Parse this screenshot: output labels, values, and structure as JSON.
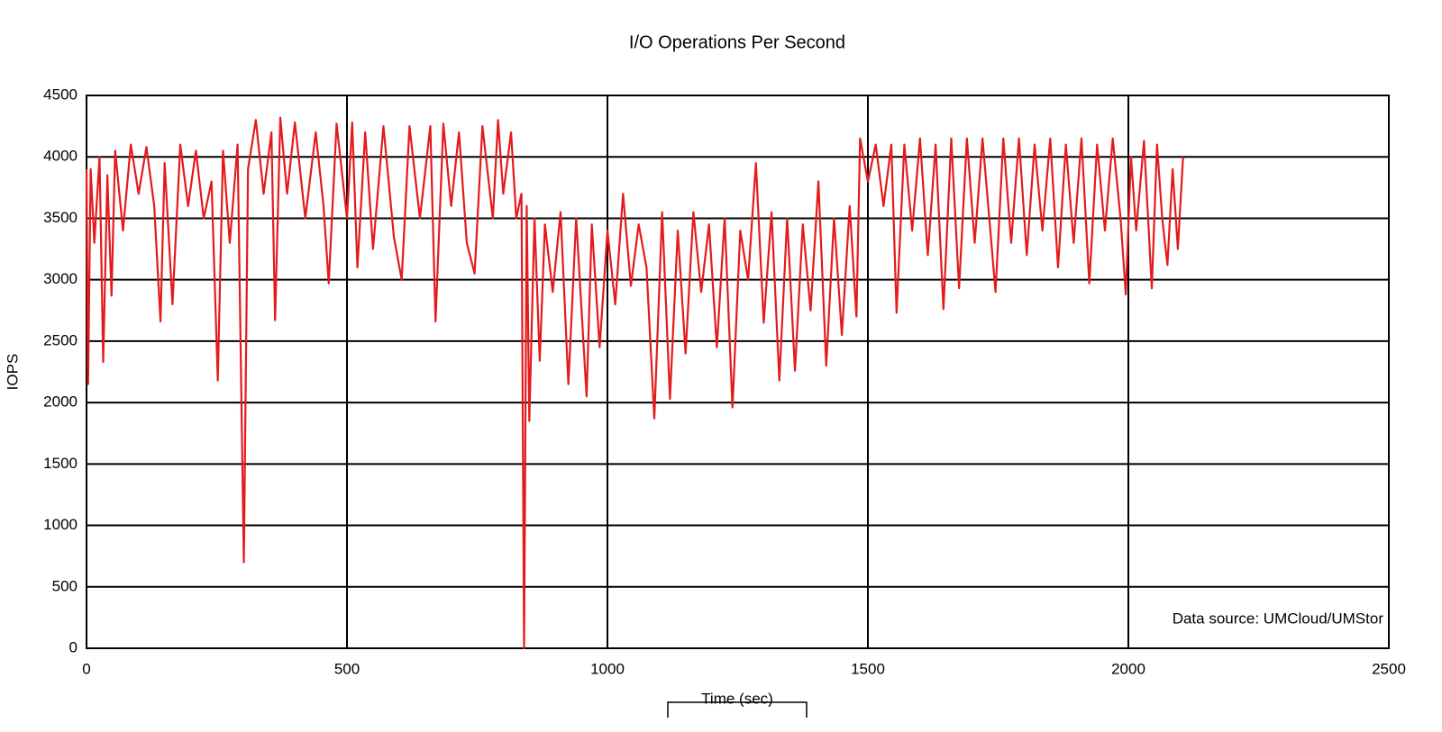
{
  "chart_data": {
    "type": "line",
    "title": "I/O Operations Per Second",
    "x_label": "Time (sec)",
    "y_label": "IOPS",
    "annotation": "Data source: UMCloud/UMStor",
    "xlim": [
      0,
      2500
    ],
    "xticks": [
      0,
      500,
      1000,
      1500,
      2000,
      2500
    ],
    "ylim": [
      0,
      4500
    ],
    "yticks": [
      0,
      500,
      1000,
      1500,
      2000,
      2500,
      3000,
      3500,
      4000,
      4500
    ],
    "grid": true,
    "x": [
      0,
      3,
      8,
      15,
      25,
      32,
      40,
      48,
      55,
      70,
      85,
      100,
      115,
      130,
      142,
      150,
      165,
      180,
      195,
      210,
      225,
      240,
      252,
      262,
      275,
      290,
      302,
      310,
      325,
      340,
      355,
      362,
      372,
      385,
      400,
      420,
      440,
      455,
      465,
      480,
      500,
      510,
      520,
      535,
      550,
      570,
      590,
      605,
      620,
      640,
      660,
      670,
      685,
      700,
      715,
      730,
      745,
      760,
      780,
      790,
      800,
      815,
      825,
      835,
      840,
      845,
      850,
      860,
      870,
      880,
      895,
      910,
      925,
      940,
      960,
      970,
      985,
      1000,
      1015,
      1030,
      1045,
      1060,
      1075,
      1090,
      1105,
      1120,
      1135,
      1150,
      1165,
      1180,
      1195,
      1210,
      1225,
      1240,
      1255,
      1270,
      1285,
      1300,
      1315,
      1330,
      1345,
      1360,
      1375,
      1390,
      1405,
      1420,
      1435,
      1450,
      1465,
      1478,
      1485,
      1500,
      1515,
      1530,
      1545,
      1555,
      1570,
      1585,
      1600,
      1615,
      1630,
      1645,
      1660,
      1675,
      1690,
      1705,
      1720,
      1735,
      1745,
      1760,
      1775,
      1790,
      1805,
      1820,
      1835,
      1850,
      1865,
      1880,
      1895,
      1910,
      1925,
      1940,
      1955,
      1970,
      1985,
      1995,
      2005,
      2015,
      2030,
      2045,
      2055,
      2065,
      2075,
      2085,
      2095,
      2105
    ],
    "series": [
      {
        "color": "#e41a1c",
        "values": [
          3900,
          2150,
          3900,
          3300,
          4000,
          2330,
          3850,
          2870,
          4050,
          3400,
          4100,
          3700,
          4080,
          3600,
          2660,
          3950,
          2800,
          4100,
          3600,
          4050,
          3500,
          3800,
          2180,
          4050,
          3300,
          4100,
          700,
          3900,
          4300,
          3700,
          4200,
          2670,
          4320,
          3700,
          4280,
          3500,
          4200,
          3600,
          2970,
          4270,
          3500,
          4280,
          3100,
          4200,
          3250,
          4250,
          3350,
          3000,
          4250,
          3500,
          4250,
          2660,
          4270,
          3600,
          4200,
          3300,
          3050,
          4250,
          3500,
          4300,
          3700,
          4200,
          3500,
          3700,
          0,
          3600,
          1850,
          3500,
          2340,
          3450,
          2900,
          3550,
          2150,
          3500,
          2050,
          3450,
          2450,
          3400,
          2800,
          3700,
          2950,
          3450,
          3100,
          1870,
          3550,
          2030,
          3400,
          2400,
          3550,
          2900,
          3450,
          2450,
          3500,
          1960,
          3400,
          3000,
          3950,
          2650,
          3550,
          2180,
          3500,
          2260,
          3450,
          2750,
          3800,
          2300,
          3500,
          2550,
          3600,
          2700,
          4150,
          3800,
          4100,
          3600,
          4100,
          2730,
          4100,
          3400,
          4150,
          3200,
          4100,
          2760,
          4150,
          2930,
          4150,
          3300,
          4150,
          3400,
          2900,
          4150,
          3300,
          4150,
          3200,
          4100,
          3400,
          4150,
          3100,
          4100,
          3300,
          4150,
          2970,
          4100,
          3400,
          4150,
          3500,
          2880,
          4000,
          3400,
          4130,
          2930,
          4100,
          3500,
          3120,
          3900,
          3250,
          4000
        ]
      }
    ]
  }
}
